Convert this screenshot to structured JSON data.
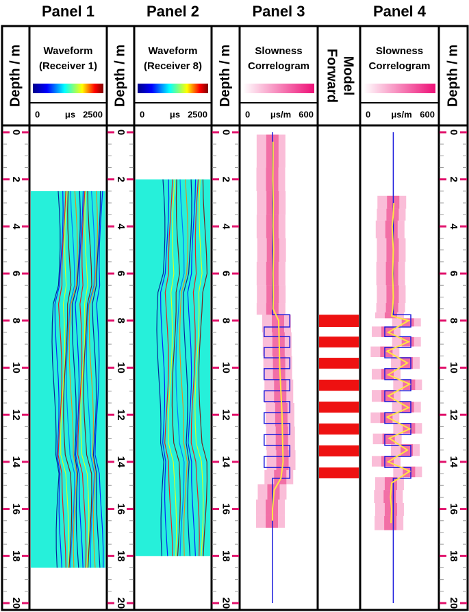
{
  "chart_data": {
    "type": "well-log",
    "panel_titles": [
      "Panel 1",
      "Panel 2",
      "Panel 3",
      "Panel 4"
    ],
    "depth_axis": {
      "label": "Depth / m",
      "ylim": [
        0,
        20
      ],
      "yticks": [
        0,
        2,
        4,
        6,
        8,
        10,
        12,
        14,
        16,
        18,
        20
      ]
    },
    "waveform_1": {
      "title": "Waveform",
      "subtitle": "(Receiver 1)",
      "unit": "μs",
      "xlim": [
        0,
        2500
      ],
      "depth_range": [
        2.5,
        18.5
      ]
    },
    "waveform_2": {
      "title": "Waveform",
      "subtitle": "(Receiver 8)",
      "unit": "μs",
      "xlim": [
        0,
        2500
      ],
      "depth_range": [
        2,
        18
      ]
    },
    "forward_model": {
      "label_lines": [
        "Forward",
        "Model"
      ],
      "color": "#ee1111",
      "layers": [
        [
          7.75,
          8.27
        ],
        [
          8.68,
          9.14
        ],
        [
          9.58,
          10.04
        ],
        [
          10.51,
          10.98
        ],
        [
          11.44,
          11.91
        ],
        [
          12.37,
          12.84
        ],
        [
          13.3,
          13.77
        ],
        [
          14.24,
          14.7
        ]
      ]
    },
    "slowness_1": {
      "title": "Slowness",
      "subtitle": "Correlogram",
      "unit": "μs/m",
      "xlim": [
        0,
        600
      ],
      "model": {
        "color": "#1a1adc",
        "depth": [
          0,
          7.75,
          7.75,
          8.27,
          8.27,
          8.68,
          8.68,
          9.14,
          9.14,
          9.58,
          9.58,
          10.04,
          10.04,
          10.51,
          10.51,
          10.98,
          10.98,
          11.44,
          11.44,
          11.91,
          11.91,
          12.37,
          12.37,
          12.84,
          12.84,
          13.3,
          13.3,
          13.77,
          13.77,
          14.24,
          14.24,
          14.7,
          14.7,
          20
        ],
        "slowness": [
          245,
          245,
          400,
          400,
          170,
          170,
          400,
          400,
          170,
          170,
          400,
          400,
          170,
          170,
          400,
          400,
          170,
          170,
          400,
          400,
          170,
          170,
          400,
          400,
          170,
          170,
          400,
          400,
          170,
          170,
          400,
          400,
          245,
          245
        ]
      },
      "picked": {
        "color": "#ffe640",
        "depth": [
          0.4,
          1,
          2,
          3,
          4,
          5,
          6,
          7,
          7.5,
          8,
          9,
          10,
          11,
          12,
          13,
          14,
          14.7,
          15.2,
          16,
          16.5
        ],
        "slowness": [
          250,
          250,
          248,
          252,
          250,
          255,
          250,
          252,
          250,
          300,
          305,
          310,
          320,
          330,
          335,
          340,
          320,
          260,
          245,
          245
        ]
      }
    },
    "slowness_2": {
      "title": "Slowness",
      "subtitle": "Correlogram",
      "unit": "μs/m",
      "xlim": [
        0,
        600
      ],
      "model": {
        "color": "#1a1adc",
        "depth": [
          0,
          7.75,
          7.75,
          8.27,
          8.27,
          8.68,
          8.68,
          9.14,
          9.14,
          9.58,
          9.58,
          10.04,
          10.04,
          10.51,
          10.51,
          10.98,
          10.98,
          11.44,
          11.44,
          11.91,
          11.91,
          12.37,
          12.37,
          12.84,
          12.84,
          13.3,
          13.3,
          13.77,
          13.77,
          14.24,
          14.24,
          14.7,
          14.7,
          20
        ],
        "slowness": [
          245,
          245,
          400,
          400,
          170,
          170,
          400,
          400,
          170,
          170,
          400,
          400,
          170,
          170,
          400,
          400,
          170,
          170,
          400,
          400,
          170,
          170,
          400,
          400,
          170,
          170,
          400,
          400,
          170,
          170,
          400,
          400,
          245,
          245
        ]
      },
      "picked": {
        "color": "#ffe640",
        "depth": [
          3.0,
          3.5,
          4,
          5,
          6,
          7,
          7.5,
          7.8,
          8.0,
          8.5,
          8.9,
          9.3,
          9.8,
          10.3,
          10.7,
          11.2,
          11.7,
          12.1,
          12.6,
          13.0,
          13.5,
          14.0,
          14.4,
          14.9,
          15.5,
          16,
          16.6
        ],
        "slowness": [
          250,
          245,
          235,
          245,
          240,
          245,
          240,
          230,
          380,
          200,
          380,
          190,
          370,
          200,
          390,
          200,
          380,
          190,
          390,
          210,
          370,
          200,
          390,
          230,
          220,
          230,
          225
        ]
      }
    }
  }
}
